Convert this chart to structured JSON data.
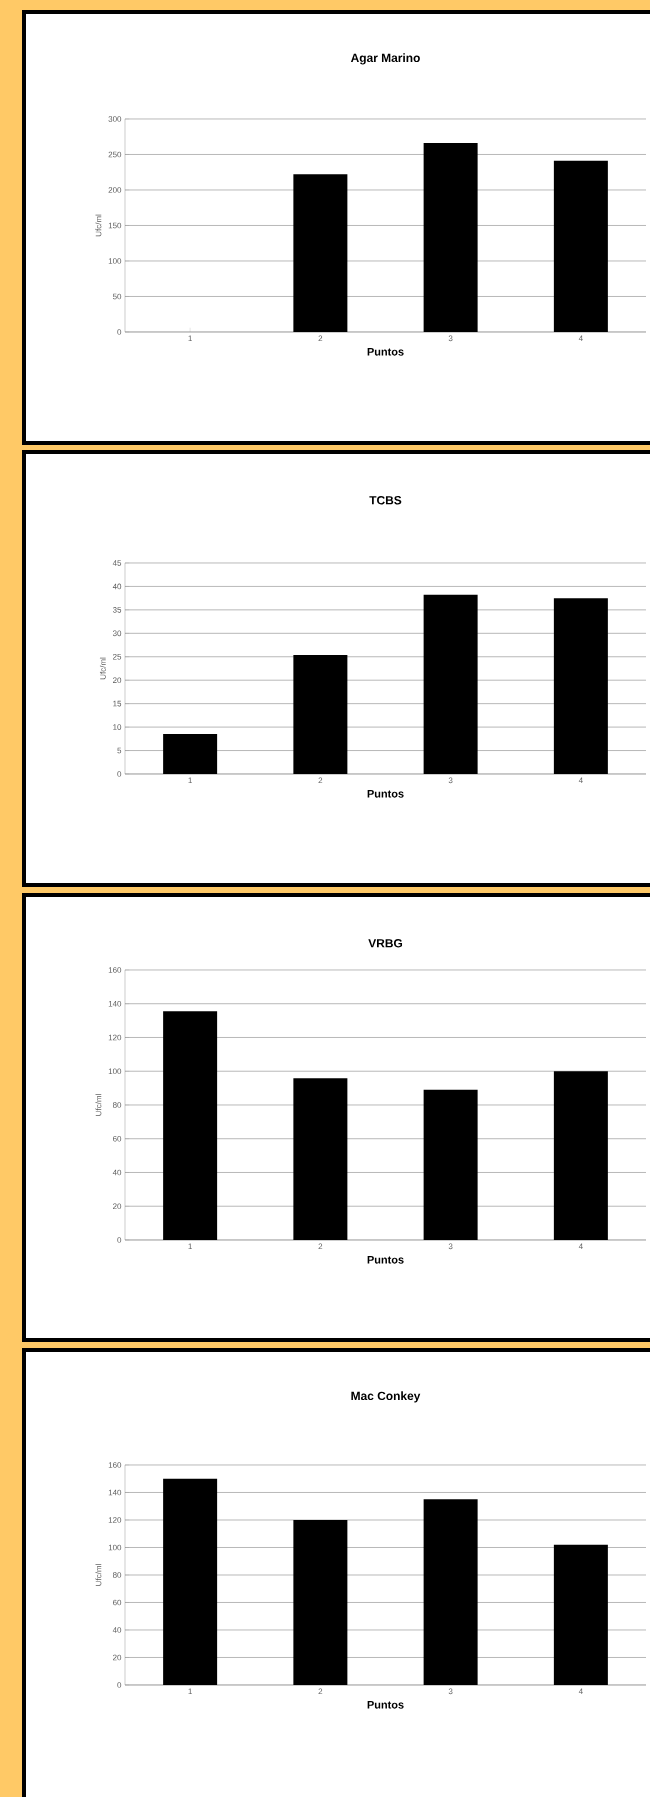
{
  "chart_data": [
    {
      "type": "bar",
      "title": "Agar Marino",
      "xlabel": "Puntos",
      "ylabel": "Ufc/ml",
      "categories": [
        "1",
        "2",
        "3",
        "4"
      ],
      "values": [
        0,
        222,
        266,
        241
      ],
      "color": "#000000",
      "ylim": [
        0,
        300
      ],
      "yticks": [
        0,
        50,
        100,
        150,
        200,
        250,
        300
      ],
      "grid": "y"
    },
    {
      "type": "bar",
      "title": "TCBS",
      "xlabel": "Puntos",
      "ylabel": "Ufc/ml",
      "categories": [
        "1",
        "2",
        "3",
        "4"
      ],
      "values": [
        8.5,
        25.4,
        38.2,
        37.5
      ],
      "color": "#000000",
      "ylim": [
        0,
        45
      ],
      "yticks": [
        0,
        5,
        10,
        15,
        20,
        25,
        30,
        35,
        40,
        45
      ],
      "grid": "y"
    },
    {
      "type": "bar",
      "title": "VRBG",
      "xlabel": "Puntos",
      "ylabel": "Ufc/ml",
      "categories": [
        "1",
        "2",
        "3",
        "4"
      ],
      "values": [
        135.6,
        95.9,
        89,
        100
      ],
      "color": "#000000",
      "ylim": [
        0,
        160
      ],
      "yticks": [
        0,
        20,
        40,
        60,
        80,
        100,
        120,
        140,
        160
      ],
      "grid": "y"
    },
    {
      "type": "bar",
      "title": "Mac Conkey",
      "xlabel": "Puntos",
      "ylabel": "Ufc/ml",
      "categories": [
        "1",
        "2",
        "3",
        "4"
      ],
      "values": [
        150,
        120,
        135,
        102
      ],
      "color": "#000000",
      "ylim": [
        0,
        160
      ],
      "yticks": [
        0,
        20,
        40,
        60,
        80,
        100,
        120,
        140,
        160
      ],
      "grid": "y"
    }
  ]
}
